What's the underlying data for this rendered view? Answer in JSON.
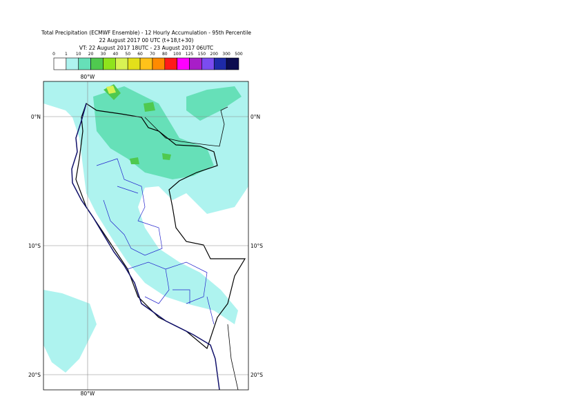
{
  "header": {
    "title_lines": [
      "Total Precipitation (ECMWF Ensemble) - 12 Hourly Accumulation - 95th Percentile",
      "22 August 2017 00 UTC (t+18,t+30)",
      "VT: 22 August 2017 18UTC - 23 August 2017 06UTC"
    ]
  },
  "legend": {
    "labels": [
      "0",
      "1",
      "10",
      "20",
      "30",
      "40",
      "50",
      "60",
      "70",
      "80",
      "100",
      "125",
      "150",
      "200",
      "300",
      "500"
    ],
    "colors": [
      "#ffffff",
      "#aef3ef",
      "#66e0b8",
      "#4fc94f",
      "#8fe31c",
      "#d8f254",
      "#e3e01a",
      "#ffc21a",
      "#ff8a00",
      "#ff1a1a",
      "#ff00ff",
      "#a81ec8",
      "#7b4cf0",
      "#1e2aa8",
      "#0c0c50"
    ]
  },
  "map": {
    "lon_label": "80°W",
    "lat_labels": [
      "0°N",
      "10°S",
      "20°S"
    ]
  }
}
